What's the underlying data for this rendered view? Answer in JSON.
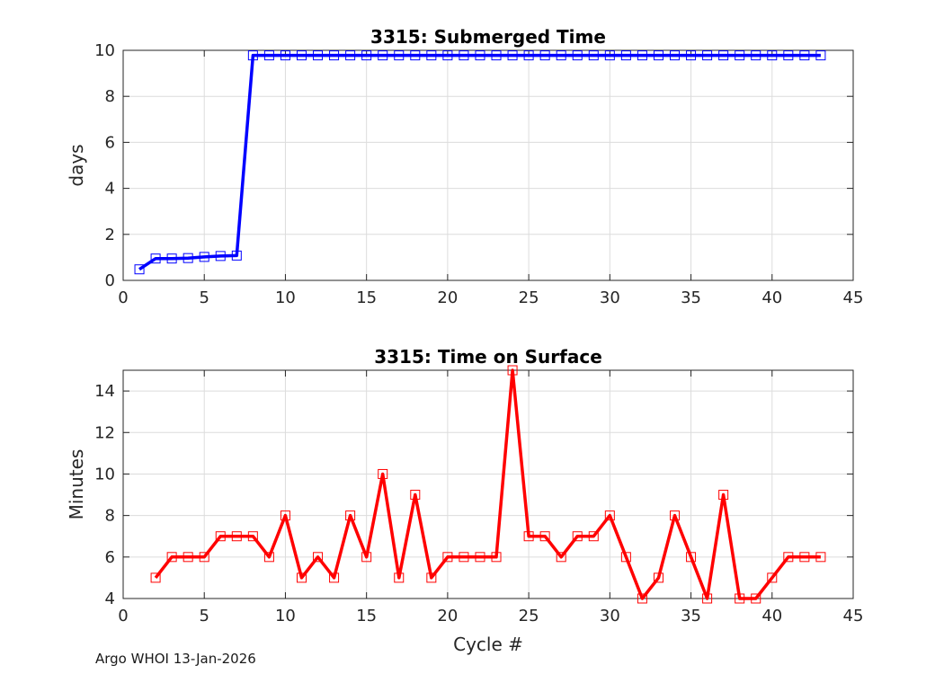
{
  "footer": {
    "text": "Argo WHOI 13-Jan-2026"
  },
  "chart_data": [
    {
      "type": "line",
      "title": "3315: Submerged Time",
      "xlabel": "",
      "ylabel": "days",
      "xlim": [
        0,
        45
      ],
      "ylim": [
        0,
        10
      ],
      "xticks": [
        0,
        5,
        10,
        15,
        20,
        25,
        30,
        35,
        40,
        45
      ],
      "yticks": [
        0,
        2,
        4,
        6,
        8,
        10
      ],
      "grid": true,
      "color": "#0000ff",
      "marker": "square",
      "x": [
        1,
        2,
        3,
        4,
        5,
        6,
        7,
        8,
        9,
        10,
        11,
        12,
        13,
        14,
        15,
        16,
        17,
        18,
        19,
        20,
        21,
        22,
        23,
        24,
        25,
        26,
        27,
        28,
        29,
        30,
        31,
        32,
        33,
        34,
        35,
        36,
        37,
        38,
        39,
        40,
        41,
        42,
        43
      ],
      "y": [
        0.48,
        0.95,
        0.95,
        0.97,
        1.02,
        1.06,
        1.08,
        9.78,
        9.78,
        9.78,
        9.78,
        9.78,
        9.78,
        9.78,
        9.78,
        9.78,
        9.78,
        9.78,
        9.78,
        9.78,
        9.78,
        9.78,
        9.78,
        9.78,
        9.78,
        9.78,
        9.78,
        9.78,
        9.78,
        9.78,
        9.78,
        9.78,
        9.78,
        9.78,
        9.78,
        9.78,
        9.78,
        9.78,
        9.78,
        9.78,
        9.78,
        9.78,
        9.78
      ]
    },
    {
      "type": "line",
      "title": "3315: Time on Surface",
      "xlabel": "Cycle #",
      "ylabel": "Minutes",
      "xlim": [
        0,
        45
      ],
      "ylim": [
        4,
        15
      ],
      "xticks": [
        0,
        5,
        10,
        15,
        20,
        25,
        30,
        35,
        40,
        45
      ],
      "yticks": [
        4,
        6,
        8,
        10,
        12,
        14
      ],
      "grid": true,
      "color": "#ff0000",
      "marker": "square",
      "x": [
        2,
        3,
        4,
        5,
        6,
        7,
        8,
        9,
        10,
        11,
        12,
        13,
        14,
        15,
        16,
        17,
        18,
        19,
        20,
        21,
        22,
        23,
        24,
        25,
        26,
        27,
        28,
        29,
        30,
        31,
        32,
        33,
        34,
        35,
        36,
        37,
        38,
        39,
        40,
        41,
        42,
        43
      ],
      "y": [
        5,
        6,
        6,
        6,
        7,
        7,
        7,
        6,
        8,
        5,
        6,
        5,
        8,
        6,
        10,
        5,
        9,
        5,
        6,
        6,
        6,
        6,
        15,
        7,
        7,
        6,
        7,
        7,
        8,
        6,
        4,
        5,
        8,
        6,
        4,
        9,
        4,
        4,
        5,
        6,
        6,
        6
      ]
    }
  ]
}
